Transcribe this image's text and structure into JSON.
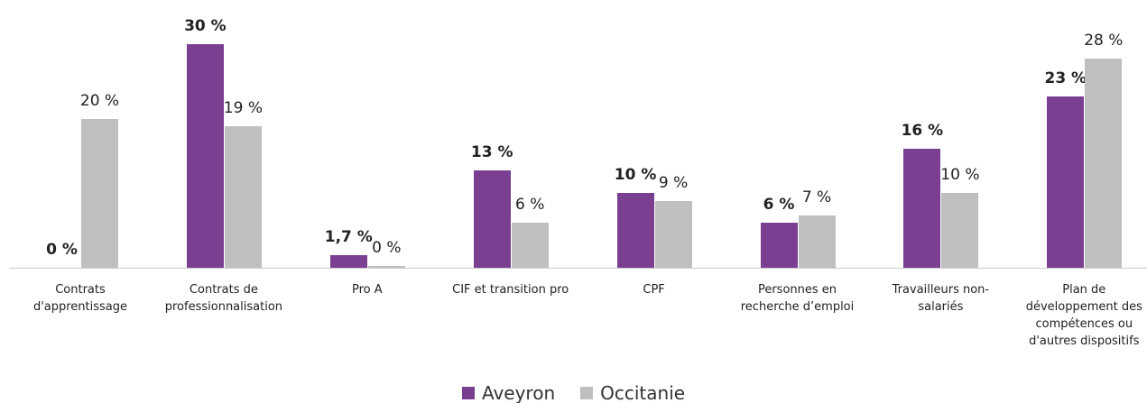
{
  "chart_data": {
    "type": "bar",
    "categories": [
      "Contrats d'apprentissage",
      "Contrats de professionnalisation",
      "Pro A",
      "CIF et transition pro",
      "CPF",
      "Personnes en recherche d’emploi",
      "Travailleurs non-salariés",
      "Plan de développement des compétences ou d'autres dispositifs"
    ],
    "series": [
      {
        "name": "Aveyron",
        "color": "#7b3f91",
        "values": [
          0,
          30,
          1.7,
          13,
          10,
          6,
          16,
          23
        ],
        "value_labels": [
          "0 %",
          "30 %",
          "1,7 %",
          "13 %",
          "10 %",
          "6 %",
          "16 %",
          "23 %"
        ]
      },
      {
        "name": "Occitanie",
        "color": "#bfbfbf",
        "values": [
          20,
          19,
          0.3,
          6,
          9,
          7,
          10,
          28
        ],
        "value_labels": [
          "20 %",
          "19 %",
          "0 %",
          "6 %",
          "9 %",
          "7 %",
          "10 %",
          "28 %"
        ]
      }
    ]
  }
}
